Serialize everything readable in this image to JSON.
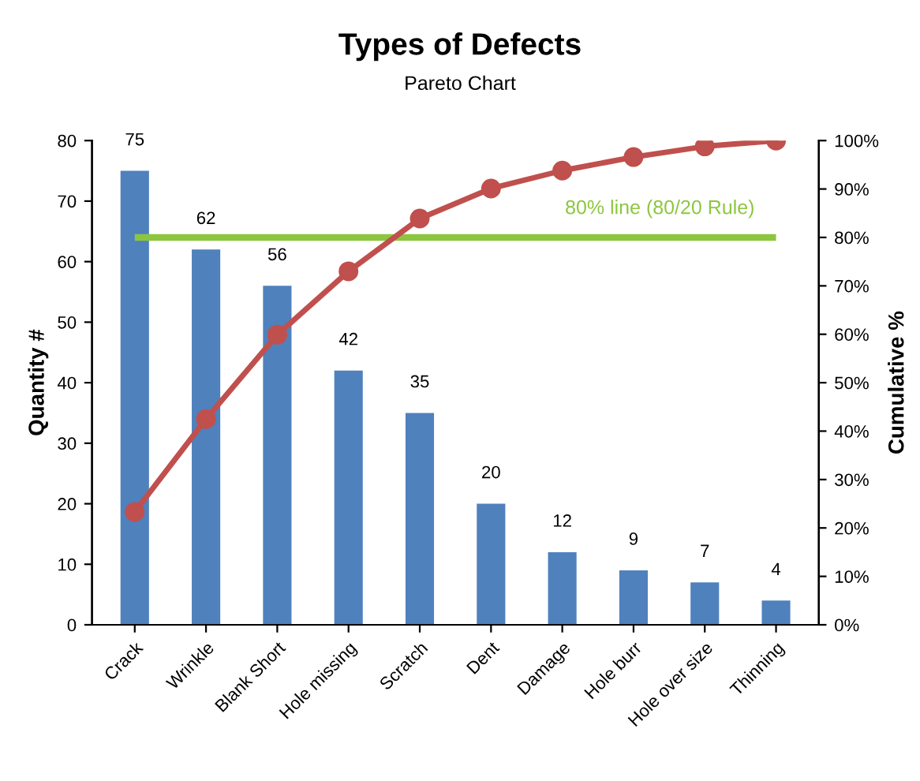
{
  "chart_data": {
    "type": "bar",
    "title": "Types of Defects",
    "subtitle": "Pareto Chart",
    "ylabel": "Quantity #",
    "y2label": "Cumulative %",
    "categories": [
      "Crack",
      "Wrinkle",
      "Blank Short",
      "Hole missing",
      "Scratch",
      "Dent",
      "Damage",
      "Hole burr",
      "Hole over size",
      "Thinning"
    ],
    "series": [
      {
        "color": "#4f81bd",
        "values": [
          75,
          62,
          56,
          42,
          35,
          20,
          12,
          9,
          7,
          4
        ],
        "data_labels": true
      },
      {
        "type": "line",
        "axis": "y2",
        "color": "#c0504d",
        "marker": "circle",
        "values": [
          23.3,
          42.5,
          59.9,
          73.0,
          83.9,
          90.1,
          93.8,
          96.6,
          98.8,
          100
        ]
      }
    ],
    "ylim": [
      0,
      80
    ],
    "yticks": [
      0,
      10,
      20,
      30,
      40,
      50,
      60,
      70,
      80
    ],
    "y2lim": [
      0,
      100
    ],
    "y2ticks": [
      {
        "value": 0,
        "label": "0%"
      },
      {
        "value": 10,
        "label": "10%"
      },
      {
        "value": 20,
        "label": "20%"
      },
      {
        "value": 30,
        "label": "30%"
      },
      {
        "value": 40,
        "label": "40%"
      },
      {
        "value": 50,
        "label": "50%"
      },
      {
        "value": 60,
        "label": "60%"
      },
      {
        "value": 70,
        "label": "70%"
      },
      {
        "value": 80,
        "label": "80%"
      },
      {
        "value": 90,
        "label": "90%"
      },
      {
        "value": 100,
        "label": "100%"
      }
    ],
    "ref_lines": [
      {
        "axis": "y2",
        "value": 80,
        "label": "80% line (80/20 Rule)",
        "color": "#8cc63f"
      }
    ],
    "grid": false
  }
}
